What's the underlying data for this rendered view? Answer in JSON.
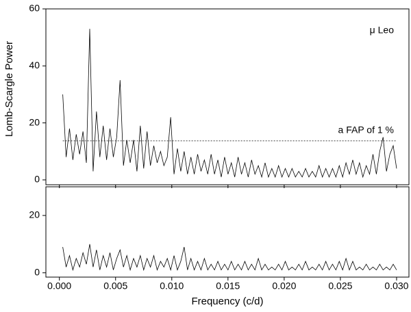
{
  "chart_data": [
    {
      "type": "line",
      "ylabel": "Lomb-Scargle Power",
      "annotation": "μ Leo",
      "fap_label": "a FAP of  1 %",
      "fap_level": 13.7,
      "xlim": [
        -0.0012,
        0.0311
      ],
      "ylim": [
        -1.7,
        60
      ],
      "yticks": [
        0,
        20,
        40,
        60
      ],
      "xticks": [
        {
          "value": 0,
          "label": "0.000"
        },
        0.005,
        {
          "value": 0.01,
          "label": "0.010"
        },
        0.015,
        {
          "value": 0.02,
          "label": "0.020"
        },
        0.025,
        {
          "value": 0.03,
          "label": "0.030"
        }
      ],
      "x": [
        0.0003,
        0.0006,
        0.0009,
        0.0012,
        0.0015,
        0.0018,
        0.0021,
        0.0024,
        0.0027,
        0.003,
        0.0033,
        0.0036,
        0.0039,
        0.0042,
        0.0045,
        0.0048,
        0.0051,
        0.0054,
        0.0057,
        0.006,
        0.0063,
        0.0066,
        0.0069,
        0.0072,
        0.0075,
        0.0078,
        0.0081,
        0.0084,
        0.0087,
        0.009,
        0.0093,
        0.0096,
        0.0099,
        0.0102,
        0.0105,
        0.0108,
        0.0111,
        0.0114,
        0.0117,
        0.012,
        0.0123,
        0.0126,
        0.0129,
        0.0132,
        0.0135,
        0.0138,
        0.0141,
        0.0144,
        0.0147,
        0.015,
        0.0153,
        0.0156,
        0.0159,
        0.0162,
        0.0165,
        0.0168,
        0.0171,
        0.0174,
        0.0177,
        0.018,
        0.0183,
        0.0186,
        0.0189,
        0.0192,
        0.0195,
        0.0198,
        0.0201,
        0.0204,
        0.0207,
        0.021,
        0.0213,
        0.0216,
        0.0219,
        0.0222,
        0.0225,
        0.0228,
        0.0231,
        0.0234,
        0.0237,
        0.024,
        0.0243,
        0.0246,
        0.0249,
        0.0252,
        0.0255,
        0.0258,
        0.0261,
        0.0264,
        0.0267,
        0.027,
        0.0273,
        0.0276,
        0.0279,
        0.0282,
        0.0285,
        0.0288,
        0.0291,
        0.0294,
        0.0297,
        0.03
      ],
      "series": [
        {
          "color": "#000000",
          "values": [
            30,
            8,
            18,
            7,
            16,
            9,
            17,
            6,
            53,
            3,
            24,
            8,
            19,
            7,
            18,
            8,
            15,
            35,
            5,
            14,
            6,
            14,
            3,
            19,
            4,
            17,
            5,
            12,
            6,
            10,
            5,
            8,
            22,
            2,
            11,
            3,
            10,
            2,
            8,
            2,
            9,
            3,
            7,
            2,
            9,
            2,
            7,
            1,
            8,
            2,
            6,
            1,
            8,
            2,
            6,
            1,
            7,
            2,
            5,
            1,
            6,
            1,
            4,
            1,
            5,
            1,
            4,
            1,
            4,
            1,
            3,
            1,
            4,
            1,
            3,
            1,
            5,
            1,
            4,
            1,
            4,
            1,
            5,
            1,
            6,
            2,
            7,
            2,
            6,
            1,
            5,
            2,
            9,
            2,
            10,
            15,
            3,
            9,
            12,
            4
          ]
        }
      ]
    },
    {
      "type": "line",
      "xlabel": "Frequency (c/d)",
      "xlim": [
        -0.0012,
        0.0311
      ],
      "ylim": [
        -1.5,
        30
      ],
      "yticks": [
        0,
        20
      ],
      "xticks": [
        {
          "value": 0,
          "label": "0.000"
        },
        0.005,
        {
          "value": 0.01,
          "label": "0.010"
        },
        0.015,
        {
          "value": 0.02,
          "label": "0.020"
        },
        0.025,
        {
          "value": 0.03,
          "label": "0.030"
        }
      ],
      "x": [
        0.0003,
        0.0006,
        0.0009,
        0.0012,
        0.0015,
        0.0018,
        0.0021,
        0.0024,
        0.0027,
        0.003,
        0.0033,
        0.0036,
        0.0039,
        0.0042,
        0.0045,
        0.0048,
        0.0051,
        0.0054,
        0.0057,
        0.006,
        0.0063,
        0.0066,
        0.0069,
        0.0072,
        0.0075,
        0.0078,
        0.0081,
        0.0084,
        0.0087,
        0.009,
        0.0093,
        0.0096,
        0.0099,
        0.0102,
        0.0105,
        0.0108,
        0.0111,
        0.0114,
        0.0117,
        0.012,
        0.0123,
        0.0126,
        0.0129,
        0.0132,
        0.0135,
        0.0138,
        0.0141,
        0.0144,
        0.0147,
        0.015,
        0.0153,
        0.0156,
        0.0159,
        0.0162,
        0.0165,
        0.0168,
        0.0171,
        0.0174,
        0.0177,
        0.018,
        0.0183,
        0.0186,
        0.0189,
        0.0192,
        0.0195,
        0.0198,
        0.0201,
        0.0204,
        0.0207,
        0.021,
        0.0213,
        0.0216,
        0.0219,
        0.0222,
        0.0225,
        0.0228,
        0.0231,
        0.0234,
        0.0237,
        0.024,
        0.0243,
        0.0246,
        0.0249,
        0.0252,
        0.0255,
        0.0258,
        0.0261,
        0.0264,
        0.0267,
        0.027,
        0.0273,
        0.0276,
        0.0279,
        0.0282,
        0.0285,
        0.0288,
        0.0291,
        0.0294,
        0.0297,
        0.03
      ],
      "series": [
        {
          "color": "#000000",
          "values": [
            9,
            2,
            6,
            1,
            5,
            2,
            7,
            3,
            10,
            2,
            8,
            1,
            6,
            2,
            7,
            1,
            5,
            8,
            2,
            6,
            1,
            5,
            2,
            6,
            1,
            5,
            2,
            6,
            1,
            4,
            2,
            5,
            1,
            6,
            1,
            4,
            9,
            1,
            5,
            1,
            4,
            1,
            5,
            1,
            3,
            1,
            4,
            1,
            3,
            1,
            4,
            1,
            3,
            1,
            4,
            1,
            3,
            1,
            5,
            1,
            3,
            1,
            2,
            1,
            3,
            1,
            4,
            1,
            2,
            1,
            3,
            1,
            4,
            1,
            2,
            1,
            3,
            1,
            4,
            1,
            3,
            1,
            4,
            1,
            5,
            1,
            4,
            1,
            2,
            1,
            3,
            1,
            2,
            1,
            3,
            1,
            2,
            1,
            3,
            1
          ]
        }
      ]
    }
  ]
}
